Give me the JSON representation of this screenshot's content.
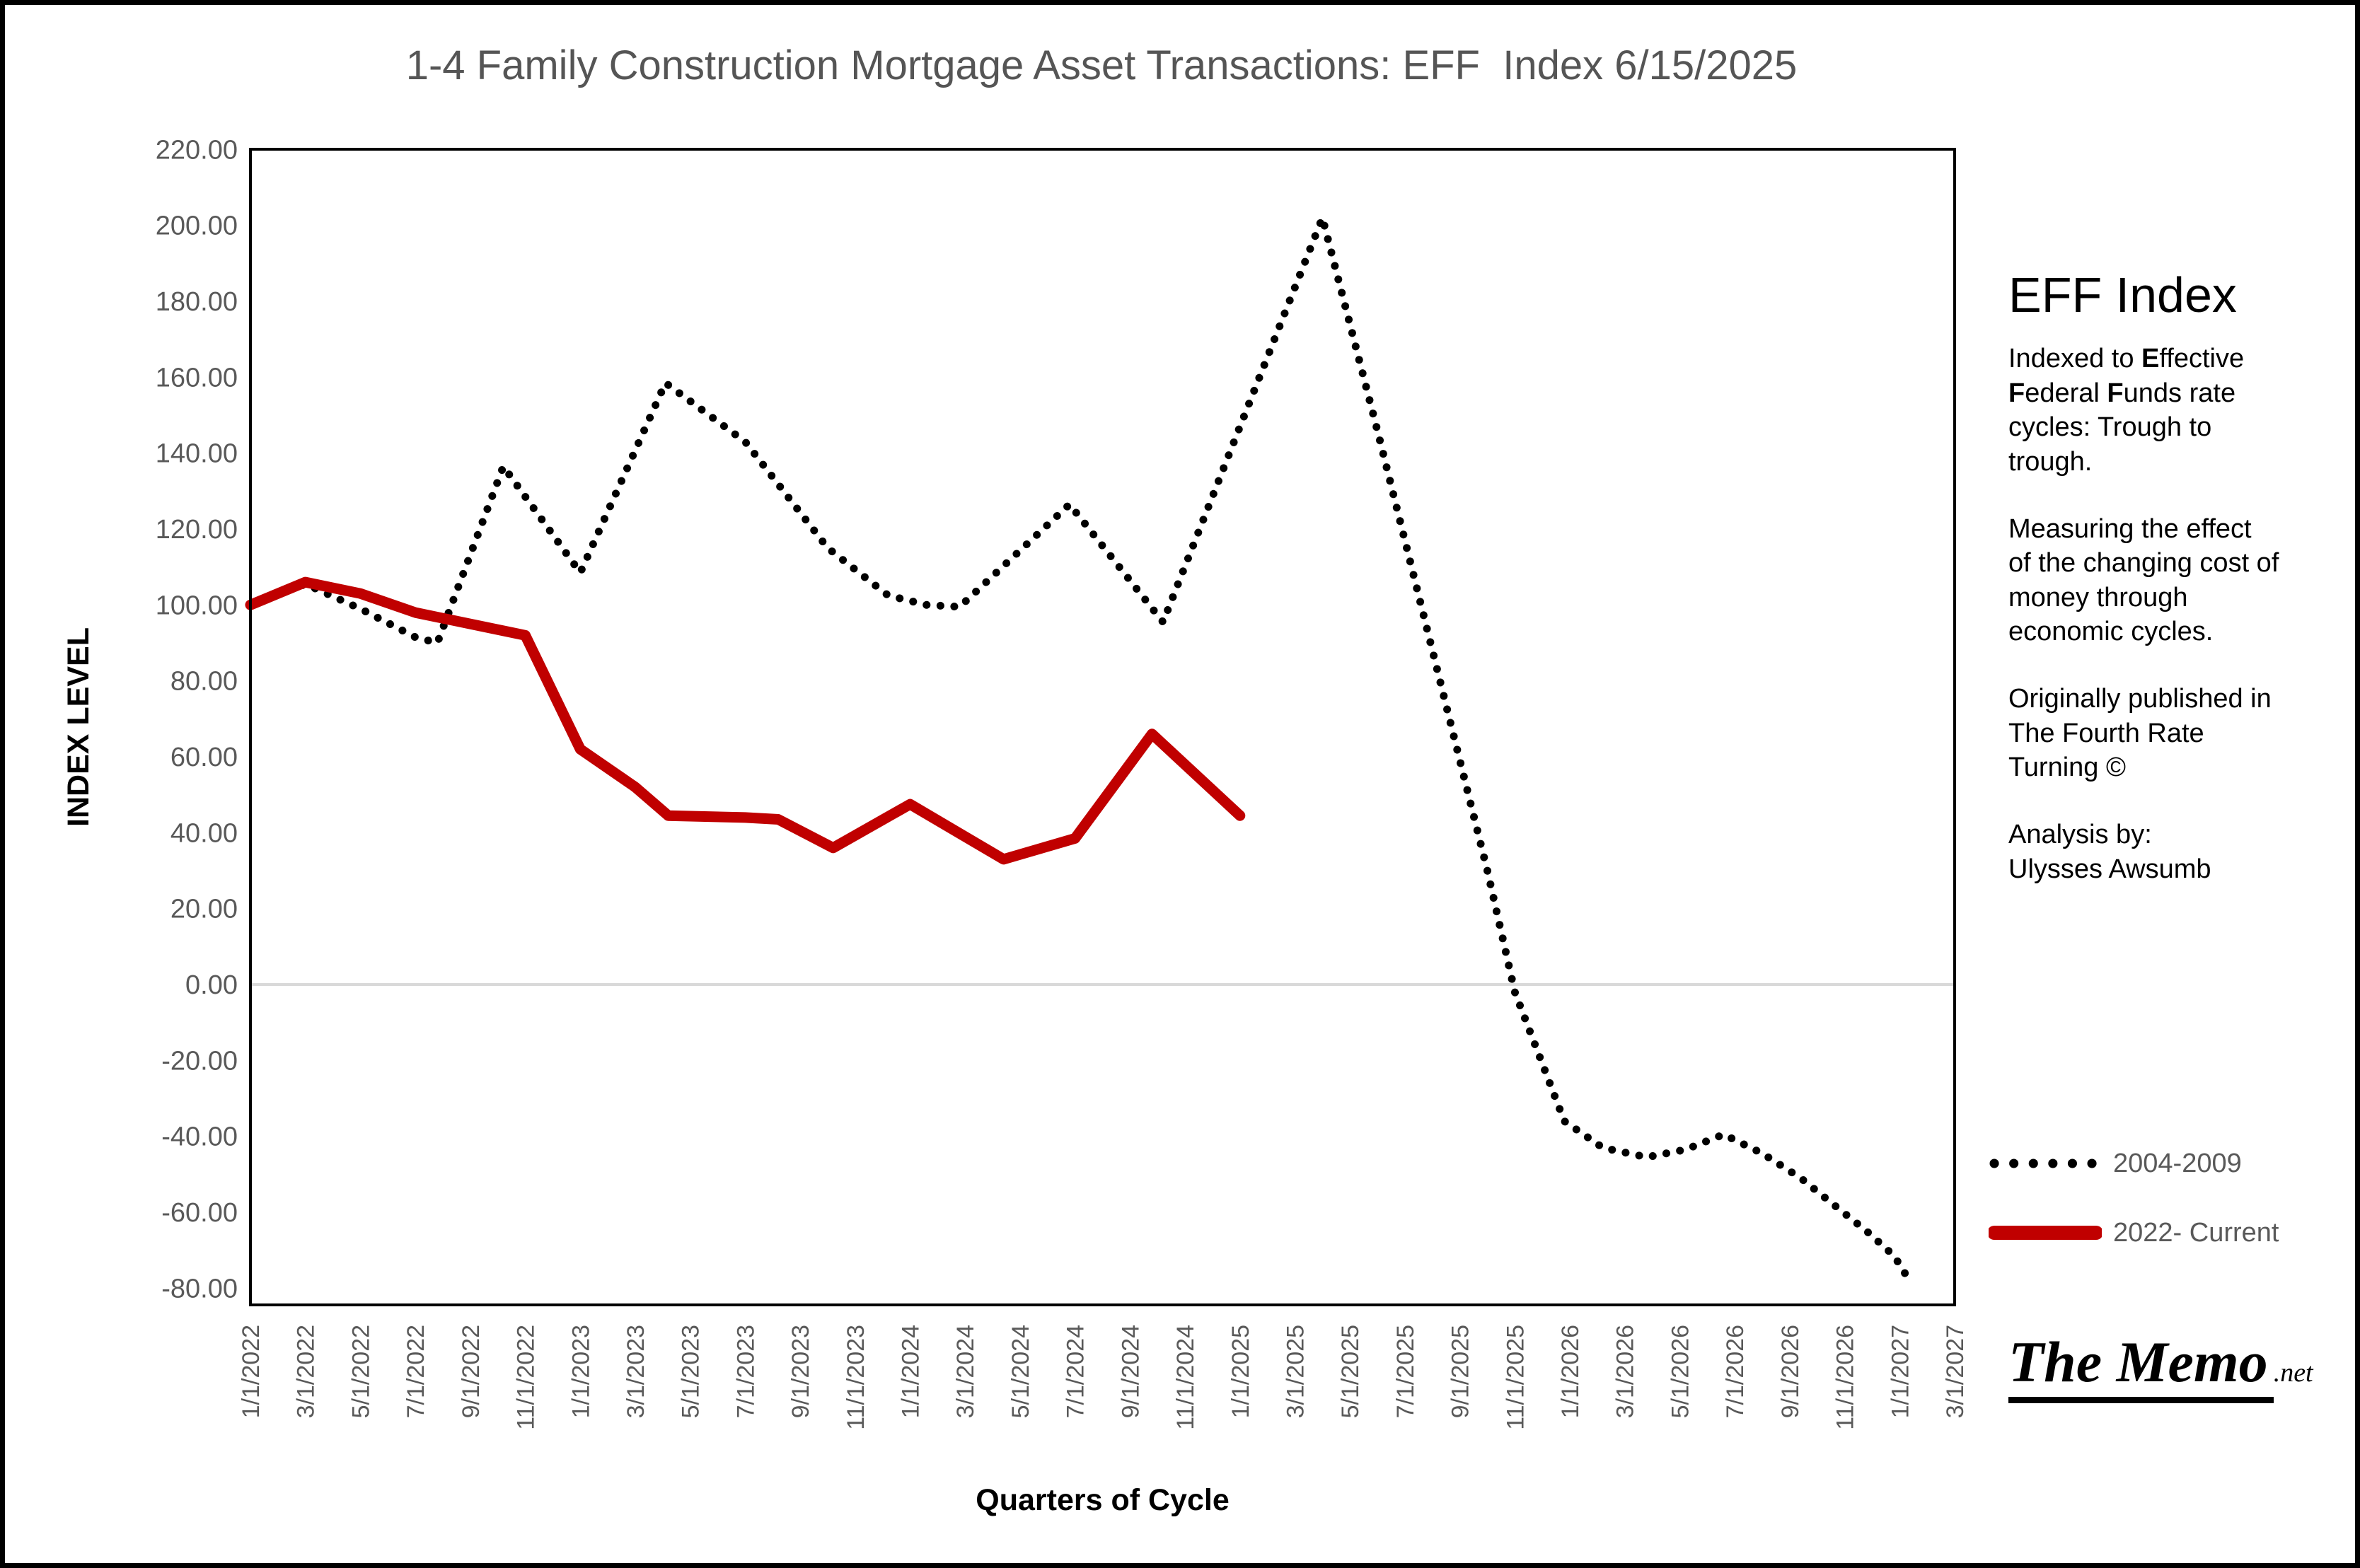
{
  "title": "1-4 Family Construction Mortgage Asset Transactions: EFF  Index 6/15/2025",
  "sidebar": {
    "heading": "EFF Index",
    "para1_runs": [
      {
        "t": "Indexed to ",
        "b": 0
      },
      {
        "t": "E",
        "b": 1
      },
      {
        "t": "ffective\n",
        "b": 0
      },
      {
        "t": "F",
        "b": 1
      },
      {
        "t": "ederal ",
        "b": 0
      },
      {
        "t": "F",
        "b": 1
      },
      {
        "t": "unds rate\ncycles: Trough to\ntrough.",
        "b": 0
      }
    ],
    "para2": "Measuring the effect\nof the changing cost of\nmoney through\neconomic cycles.",
    "para3": "Originally published in\nThe Fourth Rate\nTurning ©",
    "para4": "Analysis by:\n Ulysses Awsumb"
  },
  "legend": {
    "items": [
      {
        "label": "2004-2009",
        "style": "dotted",
        "color": "#000000"
      },
      {
        "label": "2022- Current",
        "style": "solid",
        "color": "#c00000"
      }
    ],
    "text_color": "#595959"
  },
  "logo": {
    "main": "The Memo",
    "suffix": ".net"
  },
  "chart_data": {
    "type": "line",
    "title": "1-4 Family Construction Mortgage Asset Transactions: EFF  Index 6/15/2025",
    "xlabel": "Quarters of Cycle",
    "ylabel": "INDEX LEVEL",
    "ylim": [
      -80,
      220
    ],
    "y_tick_step": 20,
    "grid": "zero-line-only",
    "zero_line_color": "#d9d9d9",
    "tick_color": "#595959",
    "legend_position": "right",
    "x_labels": [
      "1/1/2022",
      "3/1/2022",
      "5/1/2022",
      "7/1/2022",
      "9/1/2022",
      "11/1/2022",
      "1/1/2023",
      "3/1/2023",
      "5/1/2023",
      "7/1/2023",
      "9/1/2023",
      "11/1/2023",
      "1/1/2024",
      "3/1/2024",
      "5/1/2024",
      "7/1/2024",
      "9/1/2024",
      "11/1/2024",
      "1/1/2025",
      "3/1/2025",
      "5/1/2025",
      "7/1/2025",
      "9/1/2025",
      "11/1/2025",
      "1/1/2026",
      "3/1/2026",
      "5/1/2026",
      "7/1/2026",
      "9/1/2026",
      "11/1/2026",
      "1/1/2027",
      "3/1/2027"
    ],
    "y_ticks": [
      {
        "v": 220,
        "label": "220.00"
      },
      {
        "v": 200,
        "label": "200.00"
      },
      {
        "v": 180,
        "label": "180.00"
      },
      {
        "v": 160,
        "label": "160.00"
      },
      {
        "v": 140,
        "label": "140.00"
      },
      {
        "v": 120,
        "label": "120.00"
      },
      {
        "v": 100,
        "label": "100.00"
      },
      {
        "v": 80,
        "label": "80.00"
      },
      {
        "v": 60,
        "label": "60.00"
      },
      {
        "v": 40,
        "label": "40.00"
      },
      {
        "v": 20,
        "label": "20.00"
      },
      {
        "v": 0,
        "label": "0.00"
      },
      {
        "v": -20,
        "label": "-20.00"
      },
      {
        "v": -40,
        "label": "-40.00"
      },
      {
        "v": -60,
        "label": "-60.00"
      },
      {
        "v": -80,
        "label": "-80.00"
      }
    ],
    "series": [
      {
        "name": "2004-2009",
        "color": "#000000",
        "dotted": true,
        "width": 11,
        "points": [
          [
            0,
            100
          ],
          [
            1,
            105.5
          ],
          [
            2,
            99
          ],
          [
            3,
            91.5
          ],
          [
            3.4,
            90
          ],
          [
            4.6,
            136.5
          ],
          [
            6,
            108.5
          ],
          [
            7.55,
            158.5
          ],
          [
            9,
            143
          ],
          [
            10.5,
            115
          ],
          [
            11.6,
            102.5
          ],
          [
            12.3,
            100
          ],
          [
            12.9,
            99.5
          ],
          [
            14.9,
            126.5
          ],
          [
            16.6,
            95.5
          ],
          [
            18,
            147
          ],
          [
            19.5,
            202
          ],
          [
            20.5,
            146
          ],
          [
            21.5,
            88
          ],
          [
            22.5,
            30
          ],
          [
            23,
            -2
          ],
          [
            23.9,
            -36
          ],
          [
            24.6,
            -43
          ],
          [
            25.4,
            -45.5
          ],
          [
            26.1,
            -43.5
          ],
          [
            26.8,
            -39.5
          ],
          [
            27.5,
            -44.5
          ],
          [
            28.2,
            -51
          ],
          [
            28.8,
            -58
          ],
          [
            29.4,
            -65
          ],
          [
            29.9,
            -71.5
          ],
          [
            30.2,
            -78.5
          ]
        ]
      },
      {
        "name": "2022- Current",
        "color": "#c00000",
        "dotted": false,
        "width": 15,
        "points": [
          [
            0,
            100
          ],
          [
            1,
            106
          ],
          [
            2,
            103
          ],
          [
            3,
            98
          ],
          [
            4,
            95
          ],
          [
            5,
            92
          ],
          [
            6,
            62
          ],
          [
            7,
            52
          ],
          [
            7.6,
            44.5
          ],
          [
            9,
            44
          ],
          [
            9.6,
            43.5
          ],
          [
            10.6,
            36
          ],
          [
            12,
            47.5
          ],
          [
            13.7,
            33
          ],
          [
            15,
            38.5
          ],
          [
            16.4,
            66
          ],
          [
            18,
            44.5
          ]
        ]
      }
    ]
  }
}
